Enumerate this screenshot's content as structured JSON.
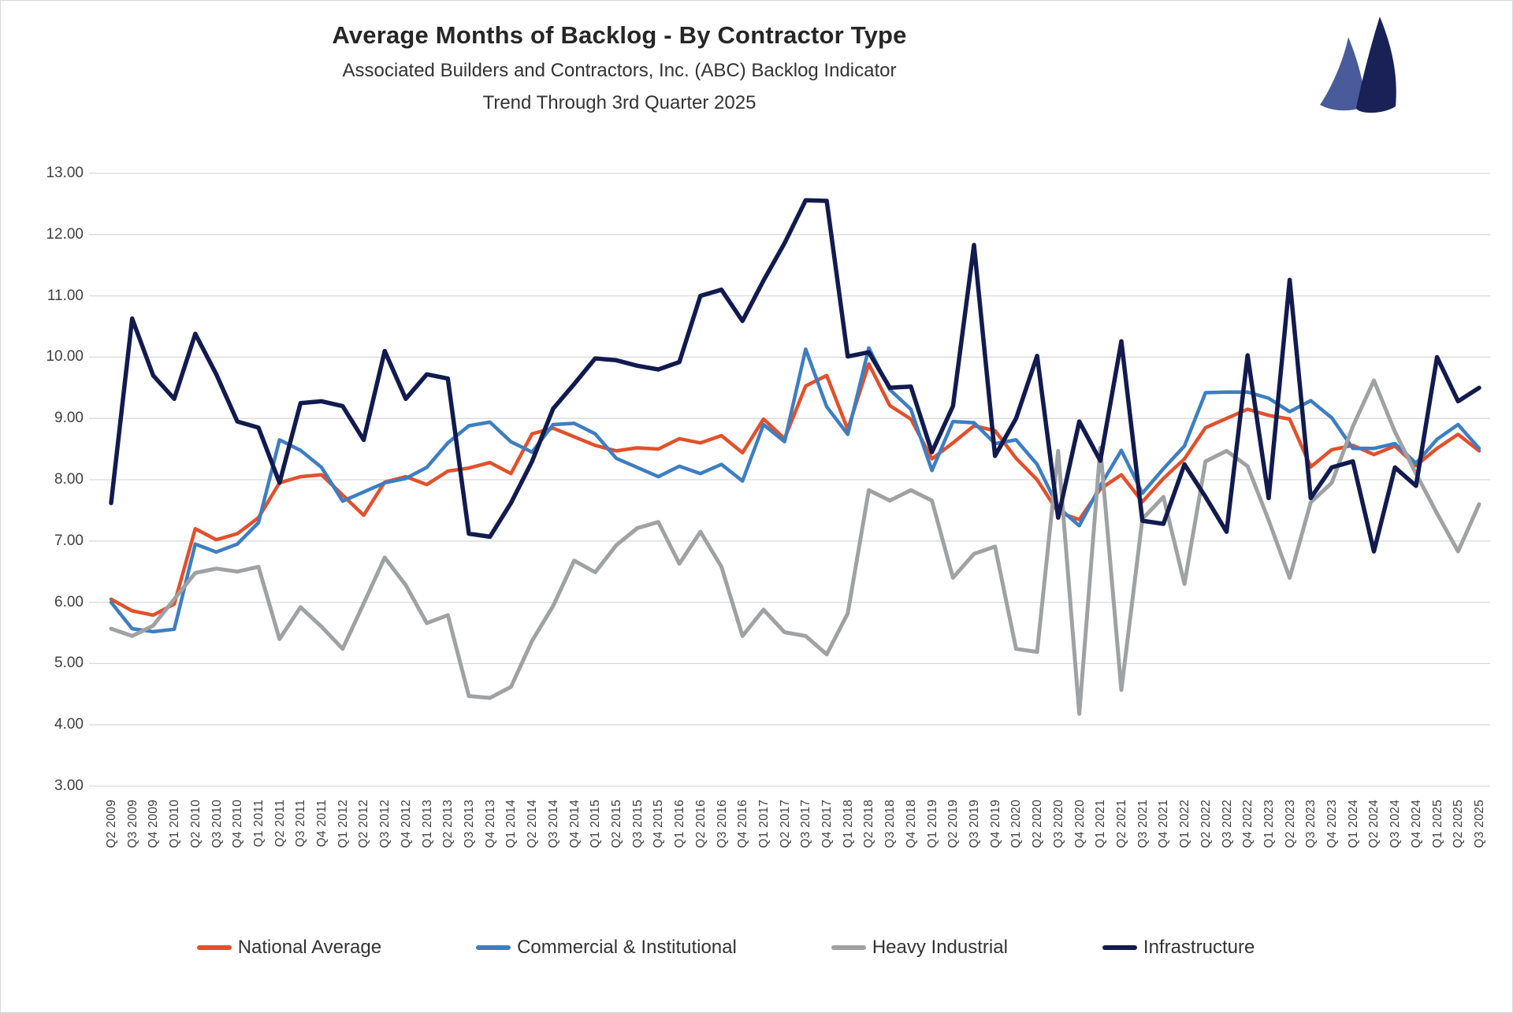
{
  "header": {
    "title": "Average Months of Backlog - By Contractor Type",
    "subtitle1": "Associated Builders and Contractors, Inc. (ABC) Backlog Indicator",
    "subtitle2": "Trend Through 3rd Quarter 2025"
  },
  "logo": {
    "sail_light_color": "#4a5b9b",
    "sail_dark_color": "#1a2157"
  },
  "colors": {
    "gridline": "#d9d9d9",
    "axis_text": "#3f3f3f",
    "national_average": "#e2502c",
    "commercial_institutional": "#3d7ec1",
    "heavy_industrial": "#9fa1a3",
    "infrastructure": "#121b4e"
  },
  "chart_data": {
    "type": "line",
    "title": "Average Months of Backlog - By Contractor Type",
    "xlabel": "",
    "ylabel": "",
    "ylim": [
      3,
      13
    ],
    "y_tick_step": 1,
    "y_tick_format": "0.00",
    "grid": "horizontal",
    "legend_position": "bottom",
    "categories": [
      "Q2 2009",
      "Q3 2009",
      "Q4 2009",
      "Q1 2010",
      "Q2 2010",
      "Q3 2010",
      "Q4 2010",
      "Q1 2011",
      "Q2 2011",
      "Q3 2011",
      "Q4 2011",
      "Q1 2012",
      "Q2 2012",
      "Q3 2012",
      "Q4 2012",
      "Q1 2013",
      "Q2 2013",
      "Q3 2013",
      "Q4 2013",
      "Q1 2014",
      "Q2 2014",
      "Q3 2014",
      "Q4 2014",
      "Q1 2015",
      "Q2 2015",
      "Q3 2015",
      "Q4 2015",
      "Q1 2016",
      "Q2 2016",
      "Q3 2016",
      "Q4 2016",
      "Q1 2017",
      "Q2 2017",
      "Q3 2017",
      "Q4 2017",
      "Q1 2018",
      "Q2 2018",
      "Q3 2018",
      "Q4 2018",
      "Q1 2019",
      "Q2 2019",
      "Q3 2019",
      "Q4 2019",
      "Q1 2020",
      "Q2 2020",
      "Q3 2020",
      "Q4 2020",
      "Q1 2021",
      "Q2 2021",
      "Q3 2021",
      "Q4 2021",
      "Q1 2022",
      "Q2 2022",
      "Q3 2022",
      "Q4 2022",
      "Q1 2023",
      "Q2 2023",
      "Q3 2023",
      "Q4 2023",
      "Q1 2024",
      "Q2 2024",
      "Q3 2024",
      "Q4 2024",
      "Q1 2025",
      "Q2 2025",
      "Q3 2025"
    ],
    "series": [
      {
        "name": "National Average",
        "color_key": "national_average",
        "stroke_width": 4.5,
        "values": [
          6.05,
          5.86,
          5.79,
          5.97,
          7.2,
          7.02,
          7.12,
          7.38,
          7.95,
          8.05,
          8.08,
          7.75,
          7.42,
          7.96,
          8.05,
          7.92,
          8.14,
          8.19,
          8.28,
          8.1,
          8.75,
          8.84,
          8.7,
          8.56,
          8.47,
          8.52,
          8.5,
          8.67,
          8.6,
          8.72,
          8.44,
          8.99,
          8.67,
          9.53,
          9.7,
          8.82,
          9.89,
          9.21,
          8.99,
          8.34,
          8.6,
          8.88,
          8.8,
          8.35,
          8.0,
          7.47,
          7.35,
          7.85,
          8.08,
          7.64,
          8.02,
          8.34,
          8.85,
          9.0,
          9.15,
          9.05,
          8.99,
          8.21,
          8.49,
          8.56,
          8.41,
          8.55,
          8.23,
          8.51,
          8.74,
          8.47
        ]
      },
      {
        "name": "Commercial & Institutional",
        "color_key": "commercial_institutional",
        "stroke_width": 4.5,
        "values": [
          6.0,
          5.57,
          5.52,
          5.56,
          6.95,
          6.82,
          6.95,
          7.3,
          8.65,
          8.48,
          8.2,
          7.65,
          7.8,
          7.95,
          8.02,
          8.2,
          8.6,
          8.88,
          8.94,
          8.62,
          8.45,
          8.9,
          8.92,
          8.75,
          8.35,
          8.2,
          8.05,
          8.22,
          8.1,
          8.25,
          7.98,
          8.9,
          8.62,
          10.13,
          9.19,
          8.74,
          10.15,
          9.47,
          9.15,
          8.15,
          8.95,
          8.93,
          8.59,
          8.65,
          8.25,
          7.55,
          7.25,
          7.9,
          8.48,
          7.78,
          8.18,
          8.55,
          9.42,
          9.43,
          9.43,
          9.33,
          9.11,
          9.29,
          9.01,
          8.51,
          8.51,
          8.59,
          8.27,
          8.66,
          8.9,
          8.51
        ]
      },
      {
        "name": "Heavy Industrial",
        "color_key": "heavy_industrial",
        "stroke_width": 5,
        "values": [
          5.57,
          5.45,
          5.62,
          6.05,
          6.48,
          6.55,
          6.5,
          6.58,
          5.4,
          5.92,
          5.6,
          5.24,
          5.98,
          6.73,
          6.28,
          5.66,
          5.79,
          4.47,
          4.44,
          4.62,
          5.37,
          5.94,
          6.68,
          6.49,
          6.93,
          7.21,
          7.31,
          6.63,
          7.15,
          6.58,
          5.45,
          5.88,
          5.51,
          5.45,
          5.15,
          5.82,
          7.83,
          7.66,
          7.83,
          7.66,
          6.4,
          6.79,
          6.91,
          5.24,
          5.19,
          8.47,
          4.18,
          8.52,
          4.57,
          7.36,
          7.72,
          6.3,
          8.3,
          8.47,
          8.22,
          7.34,
          6.4,
          7.63,
          7.95,
          8.87,
          9.62,
          8.78,
          8.1,
          7.45,
          6.83,
          7.6
        ]
      },
      {
        "name": "Infrastructure",
        "color_key": "infrastructure",
        "stroke_width": 5.5,
        "values": [
          7.62,
          10.63,
          9.7,
          9.32,
          10.38,
          9.72,
          8.95,
          8.85,
          7.95,
          9.25,
          9.28,
          9.2,
          8.65,
          10.1,
          9.32,
          9.72,
          9.65,
          7.12,
          7.07,
          7.62,
          8.3,
          9.16,
          9.56,
          9.98,
          9.95,
          9.86,
          9.8,
          9.92,
          11.0,
          11.1,
          10.59,
          11.25,
          11.86,
          12.56,
          12.55,
          10.01,
          10.08,
          9.5,
          9.52,
          8.45,
          9.2,
          11.83,
          8.39,
          9.0,
          10.02,
          7.38,
          8.95,
          8.31,
          10.26,
          7.33,
          7.28,
          8.25,
          7.72,
          7.15,
          10.03,
          7.7,
          11.26,
          7.7,
          8.2,
          8.3,
          6.83,
          8.2,
          7.9,
          10.0,
          9.28,
          9.5
        ]
      }
    ]
  }
}
